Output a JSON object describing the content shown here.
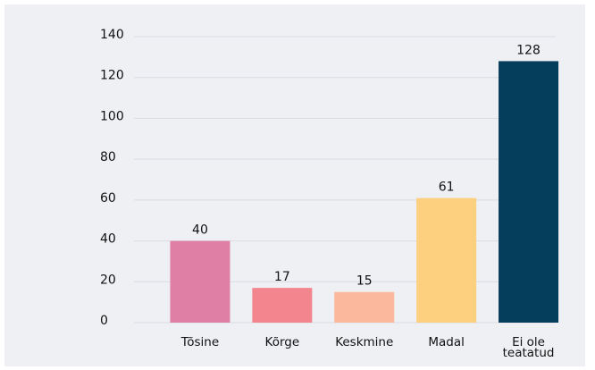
{
  "chart_data": {
    "type": "bar",
    "categories": [
      "Tõsine",
      "Kõrge",
      "Keskmine",
      "Madal",
      "Ei ole teatatud"
    ],
    "values": [
      40,
      17,
      15,
      61,
      128
    ],
    "colors": [
      "#e07fa6",
      "#f3858f",
      "#fbb89c",
      "#fdd080",
      "#053e5c"
    ],
    "ylim": [
      0,
      140
    ],
    "yticks": [
      0,
      20,
      40,
      60,
      80,
      100,
      120,
      140
    ],
    "grid": true
  }
}
